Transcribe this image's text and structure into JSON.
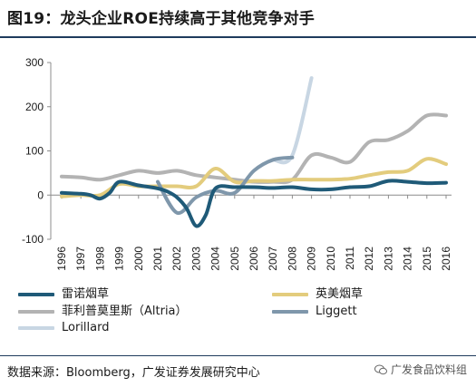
{
  "title": "图19：龙头企业ROE持续高于其他竞争对手",
  "source": "数据来源：Bloomberg，广发证券发展研究中心",
  "watermark": "广发食品饮料组",
  "chart_data": {
    "type": "line",
    "title": "",
    "xlabel": "",
    "ylabel": "",
    "ylim": [
      -100,
      300
    ],
    "yticks": [
      -100,
      0,
      100,
      200,
      300
    ],
    "x_range": [
      1996,
      2016
    ],
    "x": [
      1996,
      1997,
      1998,
      1999,
      2000,
      2001,
      2002,
      2003,
      2004,
      2005,
      2006,
      2007,
      2008,
      2009,
      2010,
      2011,
      2012,
      2013,
      2014,
      2015,
      2016
    ],
    "xtick_labels": [
      "1996",
      "1997",
      "1998",
      "1999",
      "2000",
      "2001",
      "2002",
      "2003",
      "2004",
      "2005",
      "2006",
      "2007",
      "2008",
      "2009",
      "2010",
      "2011",
      "2012",
      "2013",
      "2014",
      "2015",
      "2016"
    ],
    "grid": false,
    "legend_position": "bottom",
    "series": [
      {
        "name": "雷诺烟草",
        "color": "#1f5a78",
        "points": [
          [
            1996,
            5
          ],
          [
            1997,
            3
          ],
          [
            1997.5,
            0
          ],
          [
            1998,
            -8
          ],
          [
            1998.5,
            5
          ],
          [
            1999,
            30
          ],
          [
            2000,
            22
          ],
          [
            2001,
            15
          ],
          [
            2001.5,
            8
          ],
          [
            2002,
            -5
          ],
          [
            2002.5,
            -30
          ],
          [
            2003,
            -70
          ],
          [
            2003.5,
            -45
          ],
          [
            2004,
            15
          ],
          [
            2005,
            18
          ],
          [
            2006,
            18
          ],
          [
            2007,
            16
          ],
          [
            2008,
            18
          ],
          [
            2009,
            13
          ],
          [
            2010,
            13
          ],
          [
            2011,
            18
          ],
          [
            2012,
            20
          ],
          [
            2013,
            32
          ],
          [
            2014,
            30
          ],
          [
            2015,
            27
          ],
          [
            2016,
            28
          ]
        ]
      },
      {
        "name": "英美烟草",
        "color": "#e3cc7d",
        "points": [
          [
            1996,
            -3
          ],
          [
            1997,
            0
          ],
          [
            1998,
            0
          ],
          [
            1999,
            25
          ],
          [
            2000,
            20
          ],
          [
            2001,
            20
          ],
          [
            2002,
            20
          ],
          [
            2003,
            20
          ],
          [
            2004,
            60
          ],
          [
            2005,
            30
          ],
          [
            2006,
            32
          ],
          [
            2007,
            32
          ],
          [
            2008,
            35
          ],
          [
            2009,
            35
          ],
          [
            2010,
            35
          ],
          [
            2011,
            37
          ],
          [
            2012,
            45
          ],
          [
            2013,
            52
          ],
          [
            2014,
            55
          ],
          [
            2015,
            82
          ],
          [
            2016,
            70
          ]
        ]
      },
      {
        "name": "菲利普莫里斯（Altria）",
        "color": "#b3b3b3",
        "points": [
          [
            1996,
            42
          ],
          [
            1997,
            40
          ],
          [
            1998,
            35
          ],
          [
            1999,
            45
          ],
          [
            2000,
            55
          ],
          [
            2001,
            50
          ],
          [
            2002,
            55
          ],
          [
            2003,
            45
          ],
          [
            2004,
            40
          ],
          [
            2005,
            35
          ],
          [
            2006,
            30
          ],
          [
            2007,
            30
          ],
          [
            2008,
            35
          ],
          [
            2009,
            90
          ],
          [
            2010,
            85
          ],
          [
            2011,
            75
          ],
          [
            2012,
            120
          ],
          [
            2013,
            125
          ],
          [
            2014,
            145
          ],
          [
            2015,
            180
          ],
          [
            2016,
            180
          ]
        ]
      },
      {
        "name": "Liggett",
        "color": "#7f97ab",
        "points": [
          [
            2001,
            30
          ],
          [
            2002,
            -40
          ],
          [
            2003,
            -5
          ],
          [
            2004,
            10
          ],
          [
            2005,
            5
          ],
          [
            2006,
            55
          ],
          [
            2007,
            80
          ],
          [
            2008,
            85
          ]
        ]
      },
      {
        "name": "Lorillard",
        "color": "#c8d6e3",
        "points": [
          [
            2007,
            80
          ],
          [
            2008,
            90
          ],
          [
            2009,
            265
          ]
        ]
      }
    ]
  }
}
